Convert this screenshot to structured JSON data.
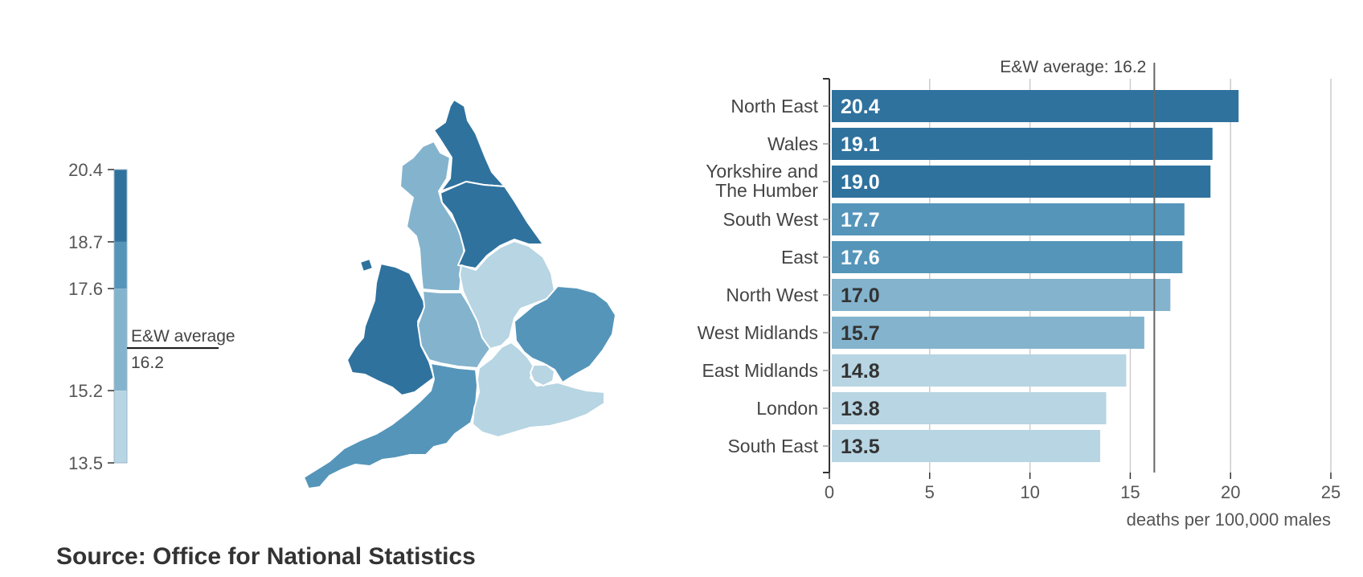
{
  "chart_data": {
    "type": "bar",
    "orientation": "horizontal",
    "categories": [
      [
        "North East"
      ],
      [
        "Wales"
      ],
      [
        "Yorkshire and",
        "The Humber"
      ],
      [
        "South West"
      ],
      [
        "East"
      ],
      [
        "North West"
      ],
      [
        "West Midlands"
      ],
      [
        "East Midlands"
      ],
      [
        "London"
      ],
      [
        "South East"
      ]
    ],
    "values": [
      20.4,
      19.1,
      19.0,
      17.7,
      17.6,
      17.0,
      15.7,
      14.8,
      13.8,
      13.5
    ],
    "value_labels": [
      "20.4",
      "19.1",
      "19.0",
      "17.7",
      "17.6",
      "17.0",
      "15.7",
      "14.8",
      "13.8",
      "13.5"
    ],
    "xlim": [
      0,
      25
    ],
    "xticks": [
      "0",
      "5",
      "10",
      "15",
      "20",
      "25"
    ],
    "xlabel": "deaths per 100,000 males",
    "reference_line": {
      "label": "E&W average: 16.2",
      "value": 16.2
    },
    "grid": true,
    "legend": {
      "type": "color-scale",
      "placement": "left",
      "min": 13.5,
      "max": 20.4,
      "ticks": [
        "20.4",
        "18.7",
        "17.6",
        "15.2",
        "13.5"
      ],
      "tick_values": [
        20.4,
        18.7,
        17.6,
        15.2,
        13.5
      ],
      "average_label": "E&W average",
      "average_value_label": "16.2",
      "average_value": 16.2
    },
    "color_bins": [
      {
        "from": 18.7,
        "to": 20.4,
        "color": "#2f729e"
      },
      {
        "from": 17.6,
        "to": 18.7,
        "color": "#5595ba"
      },
      {
        "from": 15.2,
        "to": 17.6,
        "color": "#84b3cd"
      },
      {
        "from": 13.5,
        "to": 15.2,
        "color": "#b7d5e3"
      }
    ],
    "map_regions": [
      {
        "name": "North East",
        "value": 20.4
      },
      {
        "name": "North West",
        "value": 17.0
      },
      {
        "name": "Yorkshire and The Humber",
        "value": 19.0
      },
      {
        "name": "Wales",
        "value": 19.1
      },
      {
        "name": "West Midlands",
        "value": 15.7
      },
      {
        "name": "East Midlands",
        "value": 14.8
      },
      {
        "name": "East",
        "value": 17.6
      },
      {
        "name": "South West",
        "value": 17.7
      },
      {
        "name": "South East",
        "value": 13.5
      },
      {
        "name": "London",
        "value": 13.8
      }
    ]
  },
  "source": "Source: Office for National Statistics",
  "colors": {
    "dark_label": "#333333",
    "light_label": "#ffffff",
    "axis": "#333333",
    "grid": "#cccccc",
    "reference": "#666666"
  }
}
